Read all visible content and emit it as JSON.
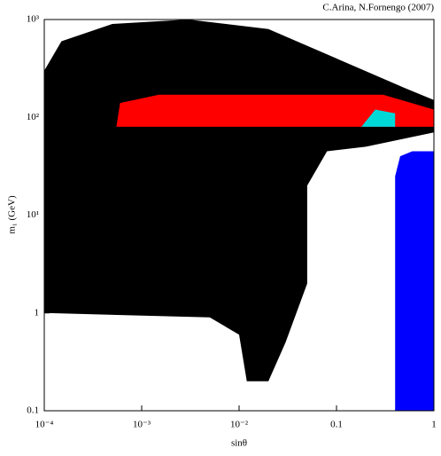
{
  "chart_data": {
    "type": "region",
    "annotation": "C.Arina, N.Fornengo (2007)",
    "x_label": "sinθ",
    "y_label": "m₁ (GeV)",
    "log_x": true,
    "log_y": true,
    "xlim": [
      0.0001,
      1
    ],
    "ylim": [
      0.1,
      1000
    ],
    "xticks": [
      {
        "value": 0.0001,
        "label": "10⁻⁴"
      },
      {
        "value": 0.001,
        "label": "10⁻³"
      },
      {
        "value": 0.01,
        "label": "10⁻²"
      },
      0.1,
      1
    ],
    "yticks": [
      0.1,
      1,
      {
        "value": 10,
        "label": "10¹"
      },
      {
        "value": 100,
        "label": "10²"
      },
      {
        "value": 1000,
        "label": "10³"
      }
    ],
    "series": [
      {
        "color": "#000000",
        "x": [
          0.0001,
          0.0001,
          0.00015,
          0.0005,
          0.003,
          0.02,
          0.1,
          0.5,
          1,
          1,
          0.2,
          0.08,
          0.05,
          0.05,
          0.03,
          0.02,
          0.012,
          0.01,
          0.005
        ],
        "values": [
          1,
          300,
          600,
          900,
          1000,
          800,
          400,
          200,
          150,
          70,
          50,
          45,
          20,
          2,
          0.5,
          0.2,
          0.2,
          0.6,
          0.9
        ]
      },
      {
        "color": "#ff0000",
        "x": [
          0.00055,
          0.0006,
          0.0015,
          0.3,
          1,
          1
        ],
        "values": [
          80,
          140,
          170,
          170,
          120,
          80
        ]
      },
      {
        "color": "#00d8d8",
        "x": [
          0.18,
          0.25,
          0.4,
          0.4,
          0.2
        ],
        "values": [
          80,
          120,
          110,
          80,
          80
        ]
      },
      {
        "color": "#0000ff",
        "x": [
          0.4,
          0.4,
          0.45,
          0.6,
          1,
          1
        ],
        "values": [
          0.1,
          25,
          40,
          45,
          45,
          0.1
        ]
      }
    ]
  }
}
